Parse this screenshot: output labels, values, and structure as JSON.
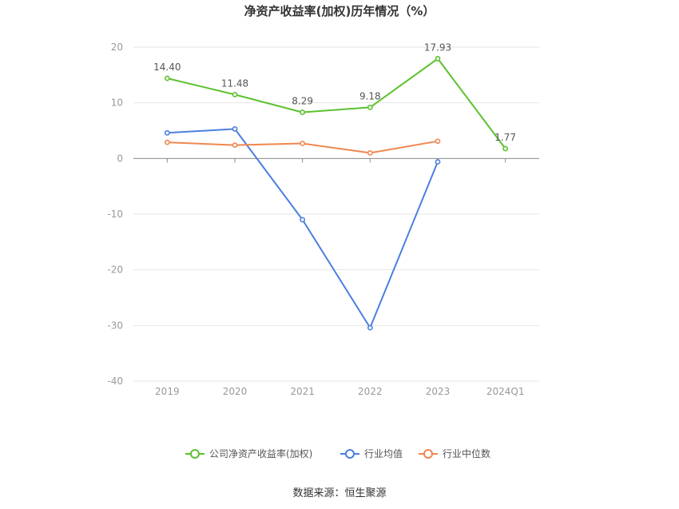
{
  "chart_data": {
    "type": "line",
    "title": "净资产收益率(加权)历年情况（%）",
    "categories": [
      "2019",
      "2020",
      "2021",
      "2022",
      "2023",
      "2024Q1"
    ],
    "ylim": [
      -40,
      20
    ],
    "yticks": [
      20,
      10,
      0,
      -10,
      -20,
      -30,
      -40
    ],
    "grid": true,
    "legend_position": "bottom",
    "series": [
      {
        "name": "公司净资产收益率(加权)",
        "color": "#5cc12e",
        "values": [
          14.4,
          11.48,
          8.29,
          9.18,
          17.93,
          1.77
        ],
        "labels": [
          "14.40",
          "11.48",
          "8.29",
          "9.18",
          "17.93",
          "1.77"
        ]
      },
      {
        "name": "行业均值",
        "color": "#4a7fe0",
        "values": [
          4.6,
          5.3,
          -11.0,
          -30.4,
          -0.6,
          null
        ]
      },
      {
        "name": "行业中位数",
        "color": "#f0874f",
        "values": [
          2.9,
          2.4,
          2.7,
          1.0,
          3.1,
          null
        ]
      }
    ]
  },
  "source_text": "数据来源：恒生聚源"
}
